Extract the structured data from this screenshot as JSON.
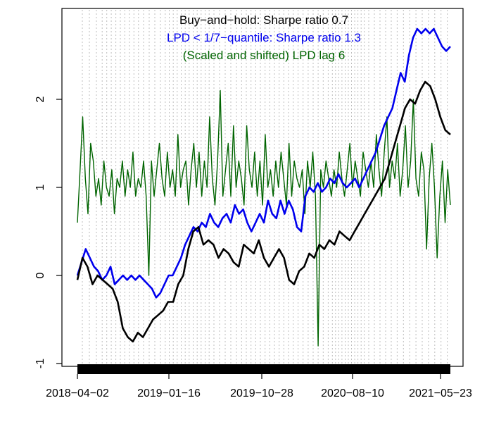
{
  "chart_data": {
    "type": "line",
    "title_lines": [
      {
        "text": "Buy−and−hold: Sharpe ratio 0.7",
        "color": "#000000"
      },
      {
        "text": "LPD < 1/7−quantile: Sharpe ratio 1.3",
        "color": "#0000ee"
      },
      {
        "text": "(Scaled and shifted) LPD lag 6",
        "color": "#006400"
      }
    ],
    "xlabel": "",
    "ylabel": "",
    "x_tick_labels": [
      "2018−04−02",
      "2019−01−16",
      "2019−10−28",
      "2020−08−10",
      "2021−05−23"
    ],
    "x_range": [
      "2018-04-02",
      "2021-06-30"
    ],
    "ylim": [
      -1,
      3.0
    ],
    "y_ticks": [
      -1,
      0,
      1,
      2
    ],
    "grid": false,
    "series": [
      {
        "color": "#006400",
        "values": [
          0.6,
          1.2,
          1.8,
          1.1,
          0.7,
          1.5,
          1.3,
          0.9,
          1.1,
          0.8,
          1.3,
          1.0,
          0.9,
          1.2,
          0.7,
          1.1,
          1.0,
          1.3,
          0.9,
          1.2,
          1.0,
          1.4,
          0.9,
          1.1,
          1.0,
          1.3,
          0.9,
          0.0,
          1.3,
          0.9,
          1.2,
          1.5,
          1.1,
          0.9,
          1.4,
          1.0,
          1.2,
          0.9,
          1.6,
          1.0,
          1.2,
          1.3,
          0.8,
          1.2,
          1.5,
          1.0,
          1.4,
          0.9,
          1.3,
          1.0,
          1.8,
          1.1,
          0.8,
          1.3,
          2.1,
          0.9,
          1.2,
          1.5,
          0.9,
          1.7,
          1.0,
          1.3,
          1.1,
          0.8,
          1.7,
          1.2,
          1.0,
          1.4,
          0.9,
          1.3,
          0.8,
          1.6,
          1.0,
          1.2,
          0.9,
          1.3,
          1.0,
          1.4,
          1.1,
          0.8,
          1.5,
          0.9,
          1.3,
          1.1,
          1.0,
          1.2,
          0.7,
          1.3,
          1.0,
          1.4,
          0.9,
          -0.8,
          1.2,
          1.0,
          1.3,
          1.1,
          0.9,
          1.2,
          1.0,
          1.4,
          1.1,
          0.9,
          1.2,
          1.5,
          1.0,
          1.3,
          1.1,
          0.9,
          1.4,
          1.2,
          1.0,
          1.3,
          1.0,
          1.6,
          1.2,
          0.9,
          1.4,
          1.8,
          1.0,
          1.3,
          1.1,
          1.5,
          0.9,
          1.2,
          1.7,
          1.0,
          1.3,
          2.0,
          1.1,
          0.9,
          1.4,
          1.2,
          0.3,
          1.1,
          1.5,
          1.0,
          0.2,
          0.9,
          1.3,
          0.6,
          1.2,
          0.8
        ]
      },
      {
        "color": "#0000ee",
        "values": [
          0.0,
          0.15,
          0.3,
          0.2,
          0.1,
          0.05,
          -0.05,
          0.0,
          0.1,
          -0.1,
          -0.05,
          0.0,
          -0.05,
          0.0,
          -0.05,
          0.0,
          -0.05,
          -0.1,
          -0.15,
          -0.25,
          -0.2,
          -0.1,
          0.0,
          0.0,
          0.1,
          0.2,
          0.35,
          0.45,
          0.55,
          0.5,
          0.6,
          0.55,
          0.7,
          0.6,
          0.55,
          0.65,
          0.7,
          0.6,
          0.8,
          0.7,
          0.75,
          0.6,
          0.5,
          0.6,
          0.7,
          0.6,
          0.85,
          0.7,
          0.65,
          0.85,
          0.7,
          0.85,
          0.75,
          0.55,
          0.5,
          0.9,
          1.0,
          0.95,
          1.05,
          0.95,
          1.0,
          1.1,
          1.05,
          1.15,
          1.05,
          1.0,
          1.05,
          1.1,
          1.0,
          1.1,
          1.2,
          1.3,
          1.4,
          1.55,
          1.7,
          1.8,
          1.9,
          2.1,
          2.3,
          2.2,
          2.5,
          2.7,
          2.8,
          2.75,
          2.8,
          2.75,
          2.8,
          2.7,
          2.6,
          2.55,
          2.6
        ]
      },
      {
        "color": "#000000",
        "values": [
          -0.05,
          0.2,
          0.1,
          -0.1,
          0.0,
          -0.05,
          -0.1,
          -0.15,
          -0.3,
          -0.6,
          -0.7,
          -0.75,
          -0.65,
          -0.7,
          -0.6,
          -0.5,
          -0.45,
          -0.4,
          -0.3,
          -0.3,
          -0.1,
          0.0,
          0.3,
          0.5,
          0.55,
          0.35,
          0.4,
          0.35,
          0.2,
          0.3,
          0.25,
          0.15,
          0.1,
          0.35,
          0.3,
          0.25,
          0.4,
          0.2,
          0.1,
          0.2,
          0.3,
          0.2,
          -0.05,
          -0.1,
          0.05,
          0.1,
          0.25,
          0.2,
          0.35,
          0.3,
          0.4,
          0.35,
          0.5,
          0.45,
          0.4,
          0.5,
          0.6,
          0.7,
          0.8,
          0.9,
          1.0,
          1.1,
          1.3,
          1.5,
          1.7,
          1.9,
          2.0,
          1.95,
          2.1,
          2.2,
          2.15,
          2.0,
          1.8,
          1.65,
          1.6
        ]
      }
    ]
  }
}
